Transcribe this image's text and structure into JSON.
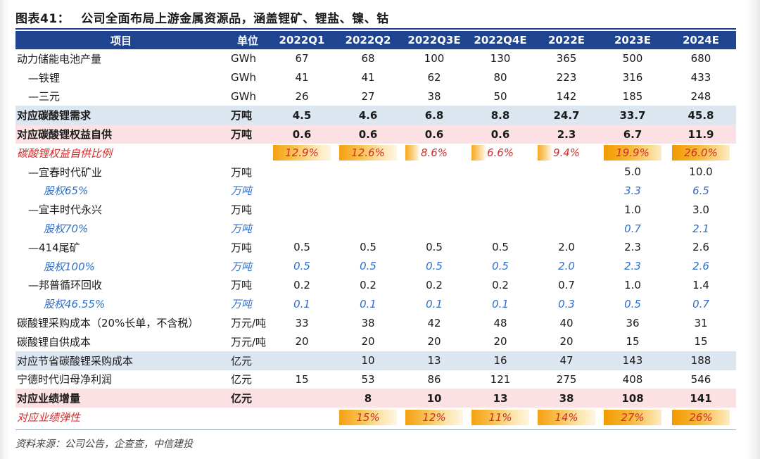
{
  "title": {
    "number": "图表41：",
    "text": "公司全面布局上游金属资源品，涵盖锂矿、锂盐、镍、钴"
  },
  "columns": [
    "项目",
    "单位",
    "2022Q1",
    "2022Q2",
    "2022Q3E",
    "2022Q4E",
    "2022E",
    "2023E",
    "2024E"
  ],
  "rows": [
    {
      "label": "动力储能电池产量",
      "unit": "GWh",
      "values": [
        "67",
        "68",
        "100",
        "130",
        "365",
        "500",
        "680"
      ]
    },
    {
      "label": "—铁锂",
      "unit": "GWh",
      "values": [
        "41",
        "41",
        "62",
        "80",
        "223",
        "316",
        "433"
      ]
    },
    {
      "label": "—三元",
      "unit": "GWh",
      "values": [
        "26",
        "27",
        "38",
        "50",
        "142",
        "185",
        "248"
      ]
    },
    {
      "label": "对应碳酸锂需求",
      "unit": "万吨",
      "values": [
        "4.5",
        "4.6",
        "6.8",
        "8.8",
        "24.7",
        "33.7",
        "45.8"
      ]
    },
    {
      "label": "对应碳酸锂权益自供",
      "unit": "万吨",
      "values": [
        "0.6",
        "0.6",
        "0.6",
        "0.6",
        "2.3",
        "6.7",
        "11.9"
      ]
    },
    {
      "label": "碳酸锂权益自供比例",
      "unit": "",
      "values": [
        "12.9%",
        "12.6%",
        "8.6%",
        "6.6%",
        "9.4%",
        "19.9%",
        "26.0%"
      ]
    },
    {
      "label": "—宜春时代矿业",
      "unit": "万吨",
      "values": [
        "",
        "",
        "",
        "",
        "",
        "5.0",
        "10.0"
      ]
    },
    {
      "label": "股权65%",
      "unit": "万吨",
      "values": [
        "",
        "",
        "",
        "",
        "",
        "3.3",
        "6.5"
      ]
    },
    {
      "label": "—宜丰时代永兴",
      "unit": "万吨",
      "values": [
        "",
        "",
        "",
        "",
        "",
        "1.0",
        "3.0"
      ]
    },
    {
      "label": "股权70%",
      "unit": "万吨",
      "values": [
        "",
        "",
        "",
        "",
        "",
        "0.7",
        "2.1"
      ]
    },
    {
      "label": "—414尾矿",
      "unit": "万吨",
      "values": [
        "0.5",
        "0.5",
        "0.5",
        "0.5",
        "2.0",
        "2.3",
        "2.6"
      ]
    },
    {
      "label": "股权100%",
      "unit": "万吨",
      "values": [
        "0.5",
        "0.5",
        "0.5",
        "0.5",
        "2.0",
        "2.3",
        "2.6"
      ]
    },
    {
      "label": "—邦普循环回收",
      "unit": "万吨",
      "values": [
        "0.2",
        "0.2",
        "0.2",
        "0.2",
        "0.7",
        "1.0",
        "1.4"
      ]
    },
    {
      "label": "股权46.55%",
      "unit": "万吨",
      "values": [
        "0.1",
        "0.1",
        "0.1",
        "0.1",
        "0.3",
        "0.5",
        "0.7"
      ]
    },
    {
      "label": "碳酸锂采购成本（20%长单，不含税）",
      "unit": "万元/吨",
      "values": [
        "33",
        "38",
        "42",
        "48",
        "40",
        "36",
        "31"
      ]
    },
    {
      "label": "碳酸锂自供成本",
      "unit": "万元/吨",
      "values": [
        "20",
        "20",
        "20",
        "20",
        "20",
        "15",
        "15"
      ]
    },
    {
      "label": "对应节省碳酸锂采购成本",
      "unit": "亿元",
      "values": [
        "",
        "10",
        "13",
        "16",
        "47",
        "143",
        "188"
      ]
    },
    {
      "label": "宁德时代归母净利润",
      "unit": "亿元",
      "values": [
        "15",
        "53",
        "86",
        "121",
        "275",
        "408",
        "546"
      ]
    },
    {
      "label": "对应业绩增量",
      "unit": "亿元",
      "values": [
        "",
        "8",
        "10",
        "13",
        "38",
        "108",
        "141"
      ]
    },
    {
      "label": "对应业绩弹性",
      "unit": "",
      "values": [
        "",
        "15%",
        "12%",
        "11%",
        "14%",
        "27%",
        "26%"
      ]
    }
  ],
  "source": "资料来源：公司公告，企查查，中信建投"
}
